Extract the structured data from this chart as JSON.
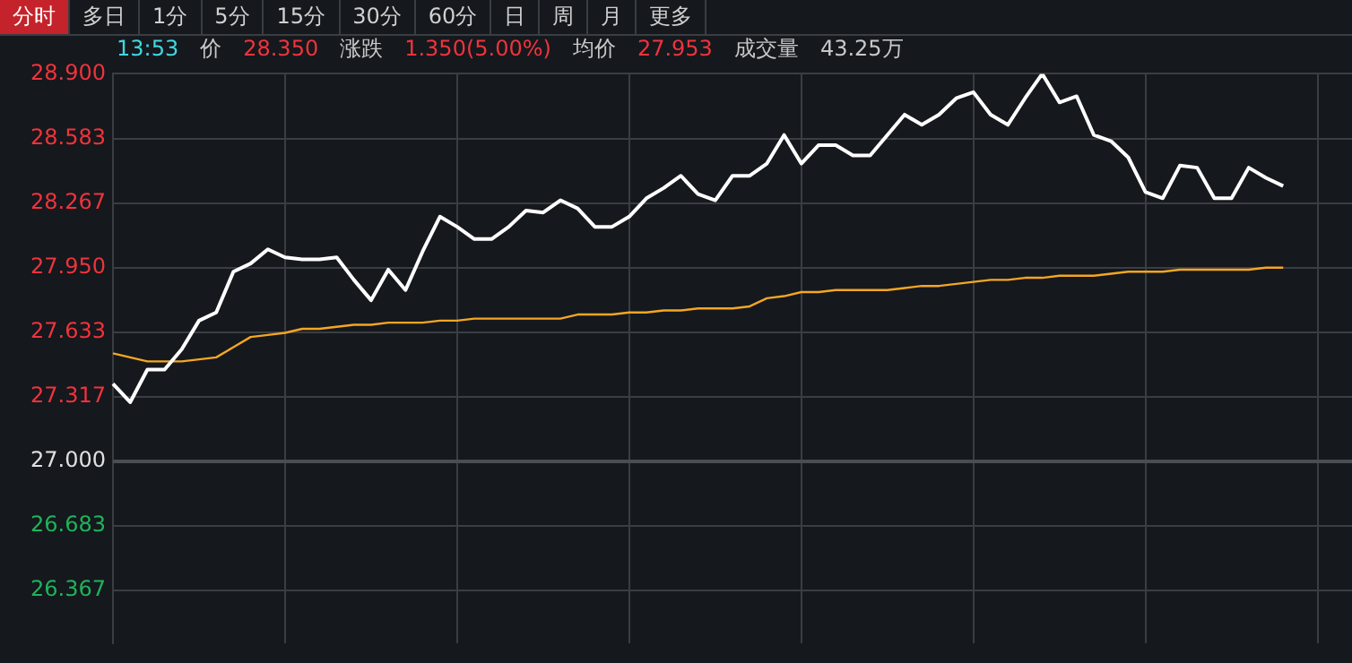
{
  "chart_data": {
    "type": "line",
    "subtitle": "13:53  价  28.350  涨跌  1.350(5.00%)  均价  27.953  成交量  43.25万",
    "annotations": [
      "分时",
      "多日",
      "1分",
      "5分",
      "15分",
      "30分",
      "60分",
      "日",
      "周",
      "月",
      "更多"
    ],
    "categories": [
      null,
      null,
      null,
      null,
      null,
      null,
      null,
      null,
      null,
      null,
      null,
      null,
      null,
      null,
      null,
      null,
      null,
      null,
      null,
      null,
      null,
      null,
      null,
      null,
      null,
      null,
      null,
      null,
      null,
      null,
      null,
      null,
      null,
      null,
      null,
      null,
      null,
      null,
      null,
      null,
      null,
      null,
      null,
      null,
      null,
      null,
      null,
      null,
      null,
      null,
      null,
      null,
      null,
      null,
      null,
      null,
      null,
      null,
      null,
      null,
      null,
      null,
      null,
      null,
      null,
      null,
      null,
      null,
      null,
      null,
      null,
      null,
      null
    ],
    "series": [
      {
        "color": "#ffffff",
        "values": [
          27.38,
          27.29,
          27.45,
          27.45,
          27.55,
          27.69,
          27.73,
          27.93,
          27.97,
          28.04,
          28.0,
          27.99,
          27.99,
          28.0,
          27.89,
          27.79,
          27.94,
          27.84,
          28.03,
          28.2,
          28.15,
          28.09,
          28.09,
          28.15,
          28.23,
          28.22,
          28.28,
          28.24,
          28.15,
          28.15,
          28.2,
          28.29,
          28.34,
          28.4,
          28.31,
          28.28,
          28.4,
          28.4,
          28.46,
          28.6,
          28.46,
          28.55,
          28.55,
          28.5,
          28.5,
          28.6,
          28.7,
          28.65,
          28.7,
          28.78,
          28.81,
          28.7,
          28.65,
          28.78,
          28.9,
          28.76,
          28.79,
          28.6,
          28.57,
          28.49,
          28.32,
          28.29,
          28.45,
          28.44,
          28.29,
          28.29,
          28.44,
          28.39,
          28.35,
          null,
          null,
          null,
          null
        ]
      },
      {
        "color": "#f5a623",
        "values": [
          27.53,
          27.51,
          27.49,
          27.49,
          27.49,
          27.5,
          27.51,
          27.56,
          27.61,
          27.62,
          27.63,
          27.65,
          27.65,
          27.66,
          27.67,
          27.67,
          27.68,
          27.68,
          27.68,
          27.69,
          27.69,
          27.7,
          27.7,
          27.7,
          27.7,
          27.7,
          27.7,
          27.72,
          27.72,
          27.72,
          27.73,
          27.73,
          27.74,
          27.74,
          27.75,
          27.75,
          27.75,
          27.76,
          27.8,
          27.81,
          27.83,
          27.83,
          27.84,
          27.84,
          27.84,
          27.84,
          27.85,
          27.86,
          27.86,
          27.87,
          27.88,
          27.89,
          27.89,
          27.9,
          27.9,
          27.91,
          27.91,
          27.91,
          27.92,
          27.93,
          27.93,
          27.93,
          27.94,
          27.94,
          27.94,
          27.94,
          27.94,
          27.95,
          27.95,
          null,
          null,
          null,
          null
        ]
      }
    ],
    "ylim": [
      26.11,
      28.9
    ],
    "yticks": [
      {
        "value": 28.9,
        "label": "28.900"
      },
      28.583,
      28.267,
      {
        "value": 27.95,
        "label": "27.950"
      },
      27.633,
      27.317,
      {
        "value": 27.0,
        "label": "27.000"
      },
      26.683,
      26.367
    ],
    "ref_lines": [
      {
        "axis": "y",
        "value": 27.0,
        "color": "#4a4d52"
      }
    ],
    "grid": true,
    "legend": false,
    "marker": "none",
    "line_style": "solid",
    "tick_labels": "y"
  }
}
